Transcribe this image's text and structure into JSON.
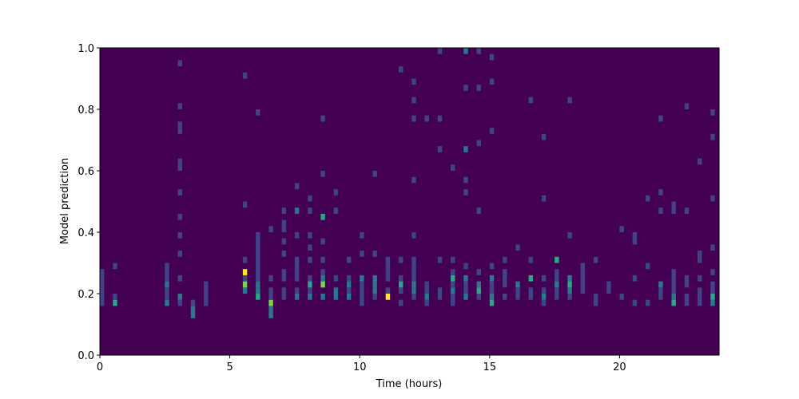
{
  "chart_data": {
    "type": "heatmap",
    "colormap": "viridis",
    "xlabel": "Time (hours)",
    "ylabel": "Model prediction",
    "xlim": [
      0,
      23.83
    ],
    "ylim": [
      0,
      1
    ],
    "xticks": [
      0,
      5,
      10,
      15,
      20
    ],
    "yticks": [
      {
        "value": 0,
        "label": "0.0"
      },
      0.2,
      0.4,
      0.6,
      0.8,
      {
        "value": 1,
        "label": "1.0"
      }
    ],
    "bin_size": [
      0.1667,
      0.02
    ],
    "columns": [
      {
        "x": 0,
        "y": [
          0.16,
          0.18,
          0.2,
          0.22,
          0.24,
          0.26
        ],
        "values": [
          1,
          1,
          1,
          1,
          1,
          1
        ]
      },
      {
        "x": 0.5,
        "y": [
          0.16,
          0.18,
          0.28
        ],
        "values": [
          3,
          1,
          1
        ]
      },
      {
        "x": 2.5,
        "y": [
          0.16,
          0.18,
          0.2,
          0.22,
          0.24,
          0.26,
          0.28
        ],
        "values": [
          2,
          1,
          1,
          2,
          1,
          1,
          1
        ]
      },
      {
        "x": 3,
        "y": [
          0.16,
          0.18,
          0.24,
          0.32,
          0.38,
          0.44,
          0.52,
          0.6,
          0.62,
          0.72,
          0.74,
          0.8,
          0.94
        ],
        "values": [
          1,
          2,
          1,
          1,
          1,
          1,
          1,
          1,
          1,
          1,
          1,
          1,
          1
        ]
      },
      {
        "x": 3.5,
        "y": [
          0.12,
          0.14,
          0.16
        ],
        "values": [
          2,
          2,
          1
        ]
      },
      {
        "x": 4,
        "y": [
          0.16,
          0.18,
          0.2,
          0.22
        ],
        "values": [
          1,
          1,
          1,
          1
        ]
      },
      {
        "x": 5.5,
        "y": [
          0.2,
          0.22,
          0.24,
          0.26,
          0.3,
          0.48,
          0.9
        ],
        "values": [
          2,
          4,
          1,
          5,
          1,
          1,
          1
        ]
      },
      {
        "x": 6,
        "y": [
          0.18,
          0.2,
          0.22,
          0.24,
          0.26,
          0.28,
          0.3,
          0.32,
          0.34,
          0.36,
          0.38,
          0.78
        ],
        "values": [
          3,
          2,
          2,
          1,
          1,
          1,
          1,
          1,
          1,
          1,
          1,
          1
        ]
      },
      {
        "x": 6.5,
        "y": [
          0.12,
          0.14,
          0.16,
          0.18,
          0.2,
          0.24,
          0.4
        ],
        "values": [
          2,
          2,
          4,
          1,
          1,
          1,
          1
        ]
      },
      {
        "x": 7,
        "y": [
          0.18,
          0.2,
          0.24,
          0.26,
          0.32,
          0.36,
          0.4,
          0.42,
          0.46
        ],
        "values": [
          1,
          1,
          1,
          1,
          1,
          1,
          1,
          1,
          1
        ]
      },
      {
        "x": 7.5,
        "y": [
          0.18,
          0.2,
          0.24,
          0.26,
          0.28,
          0.3,
          0.38,
          0.46,
          0.54
        ],
        "values": [
          2,
          1,
          1,
          1,
          1,
          1,
          1,
          2,
          1
        ]
      },
      {
        "x": 8,
        "y": [
          0.18,
          0.2,
          0.22,
          0.24,
          0.3,
          0.34,
          0.38,
          0.46,
          0.5
        ],
        "values": [
          2,
          1,
          3,
          1,
          1,
          1,
          1,
          1,
          1
        ]
      },
      {
        "x": 8.5,
        "y": [
          0.18,
          0.22,
          0.24,
          0.26,
          0.3,
          0.36,
          0.44,
          0.58,
          0.76
        ],
        "values": [
          2,
          4,
          2,
          1,
          1,
          1,
          3,
          1,
          1
        ]
      },
      {
        "x": 9,
        "y": [
          0.18,
          0.2,
          0.24,
          0.46,
          0.52
        ],
        "values": [
          2,
          2,
          1,
          1,
          1
        ]
      },
      {
        "x": 9.5,
        "y": [
          0.18,
          0.2,
          0.22,
          0.24,
          0.3
        ],
        "values": [
          2,
          1,
          2,
          1,
          1
        ]
      },
      {
        "x": 10,
        "y": [
          0.16,
          0.18,
          0.2,
          0.22,
          0.24,
          0.32,
          0.38
        ],
        "values": [
          1,
          1,
          1,
          1,
          2,
          1,
          1
        ]
      },
      {
        "x": 10.5,
        "y": [
          0.18,
          0.2,
          0.22,
          0.24,
          0.32,
          0.58
        ],
        "values": [
          1,
          2,
          2,
          2,
          1,
          1
        ]
      },
      {
        "x": 11,
        "y": [
          0.18,
          0.2,
          0.24,
          0.26,
          0.28,
          0.3
        ],
        "values": [
          5,
          1,
          1,
          1,
          1,
          1
        ]
      },
      {
        "x": 11.5,
        "y": [
          0.16,
          0.2,
          0.22,
          0.24,
          0.3,
          0.92
        ],
        "values": [
          1,
          1,
          3,
          1,
          1,
          1
        ]
      },
      {
        "x": 12,
        "y": [
          0.18,
          0.2,
          0.22,
          0.24,
          0.26,
          0.28,
          0.3,
          0.38,
          0.56,
          0.76,
          0.82,
          0.88
        ],
        "values": [
          1,
          2,
          2,
          1,
          1,
          1,
          1,
          1,
          1,
          1,
          1,
          1
        ]
      },
      {
        "x": 12.5,
        "y": [
          0.16,
          0.18,
          0.2,
          0.22,
          0.76
        ],
        "values": [
          1,
          2,
          1,
          1,
          1
        ]
      },
      {
        "x": 13,
        "y": [
          0.18,
          0.2,
          0.3,
          0.66,
          0.76,
          0.98
        ],
        "values": [
          1,
          1,
          1,
          1,
          1,
          1
        ]
      },
      {
        "x": 13.5,
        "y": [
          0.16,
          0.18,
          0.2,
          0.22,
          0.24,
          0.26,
          0.3,
          0.6
        ],
        "values": [
          1,
          1,
          2,
          1,
          3,
          1,
          1,
          1
        ]
      },
      {
        "x": 14,
        "y": [
          0.18,
          0.2,
          0.22,
          0.24,
          0.28,
          0.52,
          0.56,
          0.66,
          0.86,
          0.98
        ],
        "values": [
          2,
          1,
          1,
          2,
          1,
          1,
          1,
          2,
          1,
          2
        ]
      },
      {
        "x": 14.5,
        "y": [
          0.18,
          0.2,
          0.22,
          0.26,
          0.46,
          0.68,
          0.86,
          0.98
        ],
        "values": [
          1,
          3,
          2,
          1,
          1,
          1,
          1,
          1
        ]
      },
      {
        "x": 15,
        "y": [
          0.16,
          0.18,
          0.2,
          0.22,
          0.24,
          0.28,
          0.72,
          0.88,
          0.96
        ],
        "values": [
          3,
          2,
          1,
          1,
          2,
          1,
          1,
          1,
          1
        ]
      },
      {
        "x": 15.5,
        "y": [
          0.18,
          0.22,
          0.24,
          0.26,
          0.3
        ],
        "values": [
          1,
          1,
          1,
          1,
          1
        ]
      },
      {
        "x": 16,
        "y": [
          0.18,
          0.2,
          0.22,
          0.34
        ],
        "values": [
          1,
          1,
          2,
          1
        ]
      },
      {
        "x": 16.5,
        "y": [
          0.18,
          0.2,
          0.24,
          0.3,
          0.82
        ],
        "values": [
          1,
          1,
          3,
          1,
          1
        ]
      },
      {
        "x": 17,
        "y": [
          0.16,
          0.18,
          0.2,
          0.24,
          0.5,
          0.7
        ],
        "values": [
          1,
          2,
          1,
          1,
          1,
          1
        ]
      },
      {
        "x": 17.5,
        "y": [
          0.18,
          0.2,
          0.22,
          0.24,
          0.26,
          0.3
        ],
        "values": [
          1,
          1,
          2,
          1,
          1,
          3
        ]
      },
      {
        "x": 18,
        "y": [
          0.18,
          0.2,
          0.22,
          0.24,
          0.38,
          0.82
        ],
        "values": [
          1,
          2,
          3,
          2,
          1,
          1
        ]
      },
      {
        "x": 18.5,
        "y": [
          0.2,
          0.22,
          0.24,
          0.26,
          0.28
        ],
        "values": [
          1,
          1,
          1,
          1,
          1
        ]
      },
      {
        "x": 19,
        "y": [
          0.16,
          0.18,
          0.3
        ],
        "values": [
          1,
          1,
          1
        ]
      },
      {
        "x": 19.5,
        "y": [
          0.2,
          0.22
        ],
        "values": [
          1,
          1
        ]
      },
      {
        "x": 20,
        "y": [
          0.18,
          0.4
        ],
        "values": [
          1,
          1
        ]
      },
      {
        "x": 20.5,
        "y": [
          0.16,
          0.24,
          0.36,
          0.38
        ],
        "values": [
          1,
          1,
          1,
          1
        ]
      },
      {
        "x": 21,
        "y": [
          0.16,
          0.28,
          0.5
        ],
        "values": [
          1,
          1,
          1
        ]
      },
      {
        "x": 21.5,
        "y": [
          0.18,
          0.2,
          0.22,
          0.46,
          0.52,
          0.76
        ],
        "values": [
          1,
          1,
          2,
          1,
          1,
          1
        ]
      },
      {
        "x": 22,
        "y": [
          0.16,
          0.18,
          0.2,
          0.22,
          0.24,
          0.26,
          0.46,
          0.48
        ],
        "values": [
          3,
          2,
          1,
          1,
          1,
          1,
          1,
          1
        ]
      },
      {
        "x": 22.5,
        "y": [
          0.16,
          0.18,
          0.22,
          0.24,
          0.46,
          0.8
        ],
        "values": [
          1,
          1,
          1,
          1,
          1,
          1
        ]
      },
      {
        "x": 23,
        "y": [
          0.16,
          0.18,
          0.2,
          0.24,
          0.3,
          0.32,
          0.62
        ],
        "values": [
          1,
          1,
          1,
          1,
          1,
          1,
          1
        ]
      },
      {
        "x": 23.5,
        "y": [
          0.16,
          0.18,
          0.2,
          0.22,
          0.26,
          0.34,
          0.5,
          0.7,
          0.78
        ],
        "values": [
          2,
          3,
          1,
          1,
          1,
          1,
          1,
          1,
          1
        ]
      }
    ]
  }
}
